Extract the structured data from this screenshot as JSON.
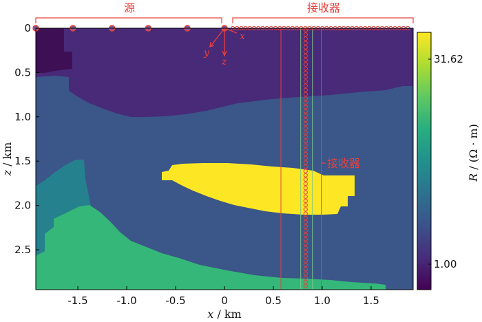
{
  "chart_data": {
    "type": "heatmap",
    "xlabel_var": "x",
    "xlabel_unit": "/ km",
    "ylabel_var": "z",
    "ylabel_unit": "/ km",
    "xlim": [
      -1.93,
      1.93
    ],
    "ylim": [
      0,
      2.95
    ],
    "x_ticks": [
      -1.5,
      -1.0,
      -0.5,
      0,
      0.5,
      1.0,
      1.5
    ],
    "x_tick_labels": [
      "-1.5",
      "-1.0",
      "-0.5",
      "0",
      "0.5",
      "1.0",
      "1.5"
    ],
    "y_ticks": [
      0,
      0.5,
      1.0,
      1.5,
      2.0,
      2.5
    ],
    "y_tick_labels": [
      "0",
      "0.5",
      "1.0",
      "1.5",
      "2.0",
      "2.5"
    ],
    "colorbar": {
      "label_var": "R",
      "label_unit": " / (Ω · m)",
      "ticks": [
        "31.62",
        "1.00"
      ],
      "colors": [
        "#440154",
        "#472d7b",
        "#3b528b",
        "#2c728e",
        "#21918c",
        "#28ae80",
        "#5ec962",
        "#addc30",
        "#fde725"
      ]
    },
    "regions": [
      {
        "name": "top-left darkest",
        "color": "#3f0f55"
      },
      {
        "name": "upper layer",
        "color": "#482a79"
      },
      {
        "name": "middle layer",
        "color": "#3b5688"
      },
      {
        "name": "teal zone",
        "color": "#26818e"
      },
      {
        "name": "green base",
        "color": "#35b779"
      },
      {
        "name": "high resistivity body",
        "color": "#fde725"
      }
    ],
    "source_label": "源",
    "receiver_label": "接收器",
    "receiver_annotation": "接收器",
    "coord_axes": {
      "x": "x",
      "y": "y",
      "z": "z"
    },
    "sources_x_km": [
      -1.93,
      -1.55,
      -1.15,
      -0.78,
      -0.38,
      0.0
    ],
    "receiver_well_x_km": 0.83,
    "guide_lines_x_km": [
      0.78,
      0.9,
      0.99
    ],
    "colors": {
      "annotation": "#e8413c",
      "guide_green": "#7cc68a",
      "source_fill": "#7a5a9a"
    }
  }
}
